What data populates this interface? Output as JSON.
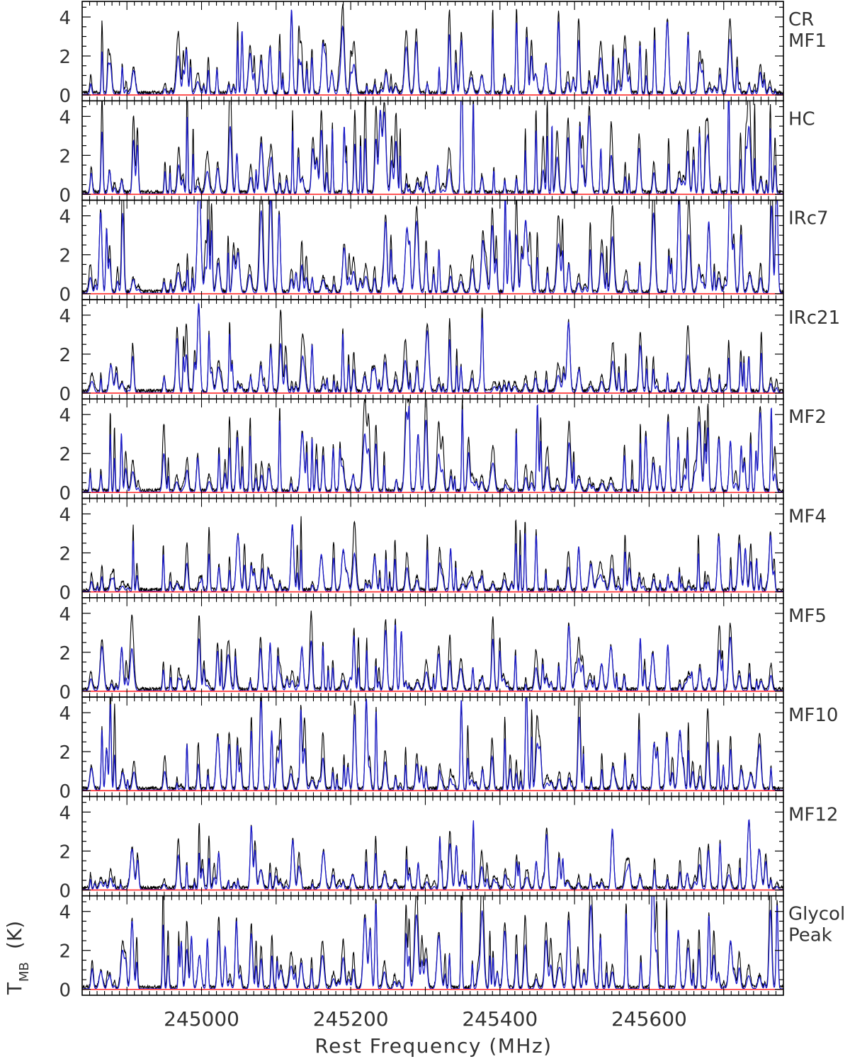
{
  "chart_data": {
    "type": "line",
    "xlabel": "Rest Frequency (MHz)",
    "ylabel_main": "T",
    "ylabel_sub": "MB",
    "ylabel_unit": "(K)",
    "xlim": [
      244840,
      245780
    ],
    "ylim": [
      -0.3,
      4.8
    ],
    "x_ticks": [
      245000,
      245200,
      245400,
      245600
    ],
    "x_tick_labels": [
      "245000",
      "245200",
      "245400",
      "245600"
    ],
    "y_ticks": [
      0,
      2,
      4
    ],
    "y_tick_labels": [
      "0",
      "2",
      "4"
    ],
    "grid": false,
    "colors": {
      "observed": "#000000",
      "model": "#1a1acc",
      "baseline": "#ff2a2a",
      "axes": "#000000"
    },
    "line_frequencies": [
      244852,
      244866,
      244878,
      244893,
      244908,
      244950,
      244968,
      244981,
      244996,
      245009,
      245022,
      245037,
      245048,
      245066,
      245080,
      245093,
      245105,
      245121,
      245134,
      245148,
      245162,
      245176,
      245190,
      245204,
      245220,
      245233,
      245246,
      245260,
      245274,
      245289,
      245302,
      245318,
      245333,
      245349,
      245363,
      245377,
      245391,
      245406,
      245421,
      245435,
      245449,
      245463,
      245478,
      245492,
      245506,
      245521,
      245536,
      245550,
      245568,
      245588,
      245606,
      245625,
      245640,
      245652,
      245667,
      245680,
      245694,
      245708,
      245722,
      245735,
      245749,
      245763
    ],
    "panels": [
      {
        "label_lines": [
          "CR",
          "MF1"
        ],
        "amplitude": 1.6,
        "seed": 11
      },
      {
        "label_lines": [
          "HC",
          ""
        ],
        "amplitude": 2.2,
        "seed": 23
      },
      {
        "label_lines": [
          "IRc7",
          ""
        ],
        "amplitude": 2.4,
        "seed": 37
      },
      {
        "label_lines": [
          "IRc21",
          ""
        ],
        "amplitude": 1.5,
        "seed": 41
      },
      {
        "label_lines": [
          "MF2",
          ""
        ],
        "amplitude": 1.8,
        "seed": 53
      },
      {
        "label_lines": [
          "MF4",
          ""
        ],
        "amplitude": 1.3,
        "seed": 67
      },
      {
        "label_lines": [
          "MF5",
          ""
        ],
        "amplitude": 1.4,
        "seed": 71
      },
      {
        "label_lines": [
          "MF10",
          ""
        ],
        "amplitude": 1.9,
        "seed": 83
      },
      {
        "label_lines": [
          "MF12",
          ""
        ],
        "amplitude": 1.2,
        "seed": 97
      },
      {
        "label_lines": [
          "Glycol",
          "Peak"
        ],
        "amplitude": 2.1,
        "seed": 101
      }
    ]
  }
}
